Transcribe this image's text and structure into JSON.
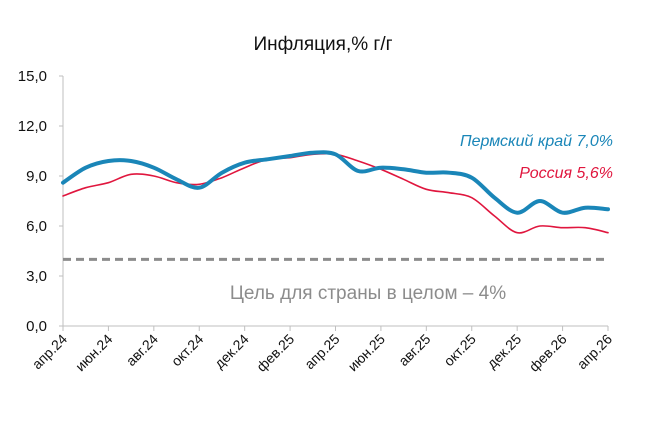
{
  "chart_data": {
    "type": "line",
    "title": "Инфляция,% г/г",
    "ylim": [
      0,
      15
    ],
    "yticks": [
      "0,0",
      "3,0",
      "6,0",
      "9,0",
      "12,0",
      "15,0"
    ],
    "ytick_values": [
      0,
      3,
      6,
      9,
      12,
      15
    ],
    "xticks": [
      "апр.24",
      "июн.24",
      "авг.24",
      "окт.24",
      "дек.24",
      "фев.25",
      "апр.25",
      "июн.25",
      "авг.25",
      "окт.25",
      "дек.25",
      "фев.26",
      "апр.26"
    ],
    "x": [
      "апр.24",
      "май.24",
      "июн.24",
      "июл.24",
      "авг.24",
      "сен.24",
      "окт.24",
      "ноя.24",
      "дек.24",
      "янв.25",
      "фев.25",
      "мар.25",
      "апр.25",
      "май.25",
      "июн.25",
      "июл.25",
      "авг.25",
      "сен.25",
      "окт.25",
      "ноя.25",
      "дек.25",
      "янв.26",
      "фев.26",
      "мар.26",
      "апр.26"
    ],
    "series": [
      {
        "name": "Пермский край 7,0%",
        "color": "#1a86b8",
        "values": [
          8.6,
          9.5,
          9.9,
          9.9,
          9.5,
          8.8,
          8.3,
          9.2,
          9.8,
          10.0,
          10.2,
          10.4,
          10.3,
          9.3,
          9.5,
          9.4,
          9.2,
          9.2,
          8.9,
          7.7,
          6.8,
          7.5,
          6.8,
          7.1,
          7.0
        ]
      },
      {
        "name": "Россия 5,6%",
        "color": "#e0163e",
        "values": [
          7.8,
          8.3,
          8.6,
          9.1,
          9.0,
          8.6,
          8.5,
          8.9,
          9.5,
          10.0,
          10.1,
          10.3,
          10.3,
          9.9,
          9.4,
          8.8,
          8.2,
          8.0,
          7.7,
          6.6,
          5.6,
          6.0,
          5.9,
          5.9,
          5.6
        ]
      }
    ],
    "target": {
      "value": 4.0,
      "label": "Цель для страны в целом – 4%",
      "color": "#8c8c8c"
    },
    "grid": false,
    "legend": "inline-right"
  }
}
